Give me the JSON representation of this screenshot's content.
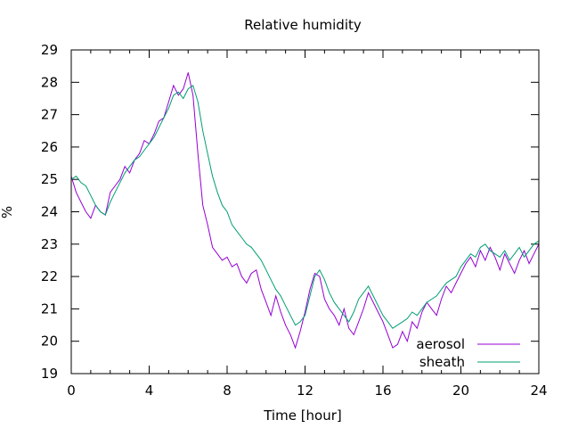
{
  "chart_data": {
    "type": "line",
    "title": "Relative humidity",
    "xlabel": "Time [hour]",
    "ylabel": "%",
    "xlim": [
      0,
      24
    ],
    "ylim": [
      19,
      29
    ],
    "x_ticks": [
      0,
      4,
      8,
      12,
      16,
      20,
      24
    ],
    "y_ticks": [
      19,
      20,
      21,
      22,
      23,
      24,
      25,
      26,
      27,
      28,
      29
    ],
    "grid": false,
    "legend_position": "bottom-right",
    "series": [
      {
        "name": "aerosol",
        "color": "#9400d3",
        "x": [
          0,
          0.25,
          0.5,
          0.75,
          1,
          1.25,
          1.5,
          1.75,
          2,
          2.25,
          2.5,
          2.75,
          3,
          3.25,
          3.5,
          3.75,
          4,
          4.25,
          4.5,
          4.75,
          5,
          5.25,
          5.5,
          5.75,
          6,
          6.25,
          6.5,
          6.75,
          7,
          7.25,
          7.5,
          7.75,
          8,
          8.25,
          8.5,
          8.75,
          9,
          9.25,
          9.5,
          9.75,
          10,
          10.25,
          10.5,
          10.75,
          11,
          11.25,
          11.5,
          11.75,
          12,
          12.25,
          12.5,
          12.75,
          13,
          13.25,
          13.5,
          13.75,
          14,
          14.25,
          14.5,
          14.75,
          15,
          15.25,
          15.5,
          15.75,
          16,
          16.25,
          16.5,
          16.75,
          17,
          17.25,
          17.5,
          17.75,
          18,
          18.25,
          18.5,
          18.75,
          19,
          19.25,
          19.5,
          19.75,
          20,
          20.25,
          20.5,
          20.75,
          21,
          21.25,
          21.5,
          21.75,
          22,
          22.25,
          22.5,
          22.75,
          23,
          23.25,
          23.5,
          23.75,
          24
        ],
        "y": [
          25.1,
          24.6,
          24.3,
          24.0,
          23.8,
          24.2,
          24.0,
          23.9,
          24.6,
          24.8,
          25.0,
          25.4,
          25.2,
          25.6,
          25.8,
          26.2,
          26.1,
          26.4,
          26.8,
          26.9,
          27.4,
          27.9,
          27.6,
          27.8,
          28.3,
          27.6,
          25.8,
          24.2,
          23.6,
          22.9,
          22.7,
          22.5,
          22.6,
          22.3,
          22.4,
          22.0,
          21.8,
          22.1,
          22.2,
          21.6,
          21.2,
          20.8,
          21.4,
          20.9,
          20.5,
          20.2,
          19.8,
          20.3,
          20.9,
          21.6,
          22.1,
          22.0,
          21.3,
          21.0,
          20.8,
          20.5,
          21.0,
          20.4,
          20.2,
          20.6,
          21.0,
          21.5,
          21.2,
          20.9,
          20.6,
          20.2,
          19.8,
          19.9,
          20.3,
          20.0,
          20.6,
          20.4,
          20.9,
          21.2,
          21.0,
          20.8,
          21.3,
          21.7,
          21.5,
          21.8,
          22.1,
          22.4,
          22.6,
          22.3,
          22.8,
          22.5,
          22.9,
          22.6,
          22.2,
          22.7,
          22.4,
          22.1,
          22.5,
          22.8,
          22.4,
          22.7,
          23.0
        ]
      },
      {
        "name": "sheath",
        "color": "#009e73",
        "x": [
          0,
          0.25,
          0.5,
          0.75,
          1,
          1.25,
          1.5,
          1.75,
          2,
          2.25,
          2.5,
          2.75,
          3,
          3.25,
          3.5,
          3.75,
          4,
          4.25,
          4.5,
          4.75,
          5,
          5.25,
          5.5,
          5.75,
          6,
          6.25,
          6.5,
          6.75,
          7,
          7.25,
          7.5,
          7.75,
          8,
          8.25,
          8.5,
          8.75,
          9,
          9.25,
          9.5,
          9.75,
          10,
          10.25,
          10.5,
          10.75,
          11,
          11.25,
          11.5,
          11.75,
          12,
          12.25,
          12.5,
          12.75,
          13,
          13.25,
          13.5,
          13.75,
          14,
          14.25,
          14.5,
          14.75,
          15,
          15.25,
          15.5,
          15.75,
          16,
          16.25,
          16.5,
          16.75,
          17,
          17.25,
          17.5,
          17.75,
          18,
          18.25,
          18.5,
          18.75,
          19,
          19.25,
          19.5,
          19.75,
          20,
          20.25,
          20.5,
          20.75,
          21,
          21.25,
          21.5,
          21.75,
          22,
          22.25,
          22.5,
          22.75,
          23,
          23.25,
          23.5,
          23.75,
          24
        ],
        "y": [
          25.0,
          25.1,
          24.9,
          24.8,
          24.5,
          24.2,
          24.0,
          23.9,
          24.3,
          24.6,
          24.9,
          25.2,
          25.4,
          25.6,
          25.7,
          25.9,
          26.1,
          26.3,
          26.6,
          26.9,
          27.2,
          27.6,
          27.7,
          27.5,
          27.8,
          27.9,
          27.4,
          26.5,
          25.8,
          25.1,
          24.6,
          24.2,
          24.0,
          23.6,
          23.4,
          23.2,
          23.0,
          22.9,
          22.7,
          22.5,
          22.2,
          21.9,
          21.6,
          21.4,
          21.1,
          20.8,
          20.5,
          20.6,
          20.8,
          21.4,
          22.0,
          22.2,
          21.9,
          21.5,
          21.2,
          21.0,
          20.8,
          20.6,
          20.9,
          21.3,
          21.5,
          21.7,
          21.4,
          21.1,
          20.8,
          20.6,
          20.4,
          20.5,
          20.6,
          20.7,
          20.9,
          20.8,
          21.0,
          21.2,
          21.3,
          21.4,
          21.6,
          21.8,
          21.9,
          22.0,
          22.3,
          22.5,
          22.7,
          22.6,
          22.9,
          23.0,
          22.8,
          22.7,
          22.6,
          22.8,
          22.5,
          22.7,
          22.9,
          22.6,
          22.8,
          23.0,
          23.1
        ]
      }
    ]
  }
}
